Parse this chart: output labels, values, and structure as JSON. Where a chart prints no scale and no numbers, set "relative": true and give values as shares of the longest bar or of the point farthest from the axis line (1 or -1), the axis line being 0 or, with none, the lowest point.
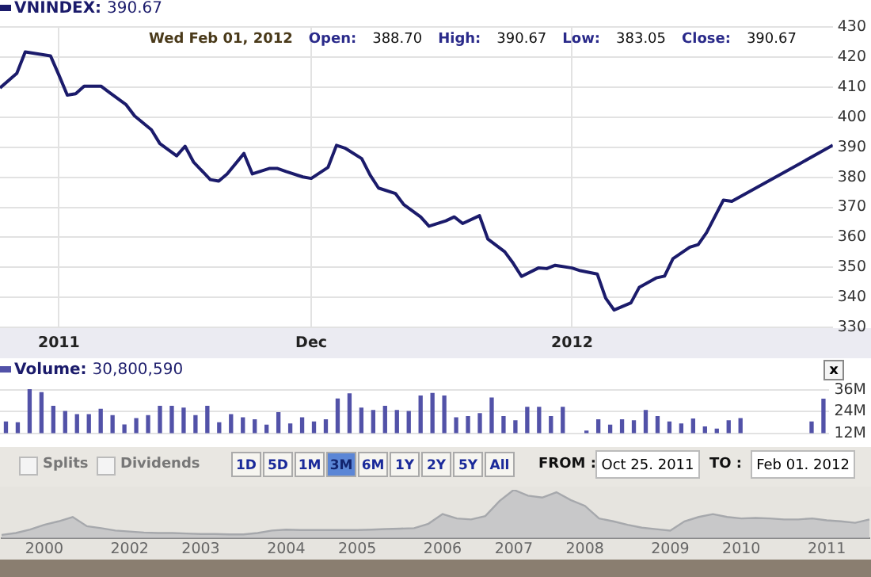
{
  "chart_data": [
    {
      "type": "line",
      "title": "VNINDEX: 390.67",
      "annotations": [
        "Wed Feb 01, 2012",
        "Open:",
        "388.70",
        "High:",
        "390.67",
        "Low:",
        "383.05",
        "Close:",
        "390.67"
      ],
      "x": [
        "2011-10-25",
        "2011-10-27",
        "2011-10-28",
        "2011-10-31",
        "2011-11-01",
        "2011-11-02",
        "2011-11-03",
        "2011-11-04",
        "2011-11-06",
        "2011-11-07",
        "2011-11-09",
        "2011-11-10",
        "2011-11-12",
        "2011-11-13",
        "2011-11-15",
        "2011-11-16",
        "2011-11-17",
        "2011-11-19",
        "2011-11-20",
        "2011-11-21",
        "2011-11-23",
        "2011-11-24",
        "2011-11-26",
        "2011-11-27",
        "2011-11-28",
        "2011-11-30",
        "2011-12-01",
        "2011-12-03",
        "2011-12-04",
        "2011-12-05",
        "2011-12-07",
        "2011-12-08",
        "2011-12-09",
        "2011-12-11",
        "2011-12-12",
        "2011-12-14",
        "2011-12-15",
        "2011-12-17",
        "2011-12-18",
        "2011-12-19",
        "2011-12-21",
        "2011-12-22",
        "2011-12-24",
        "2011-12-25",
        "2011-12-26",
        "2011-12-28",
        "2011-12-29",
        "2011-12-30",
        "2012-01-01",
        "2012-01-02",
        "2012-01-04",
        "2012-01-05",
        "2012-01-06",
        "2012-01-08",
        "2012-01-09",
        "2012-01-11",
        "2012-01-12",
        "2012-01-13",
        "2012-01-15",
        "2012-01-16",
        "2012-01-17",
        "2012-01-19",
        "2012-01-20",
        "2012-01-28",
        "2012-02-01"
      ],
      "series": [
        {
          "color": "#1b1b6b",
          "values": [
            409.7,
            414.6,
            421.7,
            420.4,
            414,
            407.3,
            407.8,
            410.3,
            410.3,
            408.2,
            404.1,
            400.4,
            395.8,
            391.2,
            387.1,
            390.3,
            385.1,
            379.2,
            378.7,
            381.1,
            387.9,
            381.1,
            382.9,
            382.9,
            381.9,
            380.1,
            379.6,
            383.3,
            390.6,
            389.7,
            386.2,
            380.7,
            376.4,
            374.6,
            370.9,
            366.8,
            363.7,
            365.5,
            366.8,
            364.6,
            367.2,
            359.4,
            355.2,
            351.4,
            347,
            349.8,
            349.6,
            350.7,
            349.8,
            348.9,
            347.8,
            339.8,
            335.8,
            338.2,
            343.4,
            346.5,
            347.1,
            352.9,
            356.7,
            357.6,
            361.6,
            372.4,
            372,
            384.4,
            390.67
          ]
        }
      ],
      "xlim": [
        "2011-10-25",
        "2012-02-01"
      ],
      "xticks": [
        {
          "value": "2011-11-01",
          "label": "2011"
        },
        {
          "value": "2011-12-01",
          "label": "Dec"
        },
        {
          "value": "2012-01-01",
          "label": "2012"
        }
      ],
      "ylim": [
        330,
        430
      ],
      "yticks": [
        330,
        340,
        350,
        360,
        370,
        380,
        390,
        400,
        410,
        420,
        430
      ],
      "grid": true
    },
    {
      "type": "bar",
      "title": "Volume: 30,800,590",
      "annotations": [
        "x"
      ],
      "categories": [
        null,
        null,
        null,
        null,
        null,
        null,
        null,
        null,
        null,
        null,
        null,
        null,
        null,
        null,
        null,
        null,
        null,
        null,
        null,
        null,
        null,
        null,
        null,
        null,
        null,
        null,
        null,
        null,
        null,
        null,
        null,
        null,
        null,
        null,
        null,
        null,
        null,
        null,
        null,
        null,
        null,
        null,
        null,
        null,
        null,
        null,
        null,
        null,
        null,
        null,
        null,
        null,
        null,
        null,
        null,
        null,
        null,
        null,
        null,
        null,
        null,
        null,
        null,
        null,
        null,
        null,
        null,
        null,
        null,
        null
      ],
      "series": [
        {
          "color": "#5252a8",
          "values": [
            18.2,
            17.8,
            36,
            34.4,
            26.8,
            24,
            22.2,
            22.2,
            25.2,
            21.7,
            16.6,
            20.1,
            21.7,
            26.8,
            26.8,
            25.8,
            21.7,
            26.8,
            17.8,
            22.2,
            20.5,
            19.4,
            16.4,
            23.3,
            17.1,
            20.5,
            18.2,
            19.4,
            30.9,
            33.7,
            25.8,
            24.5,
            26.8,
            24.5,
            24,
            32.5,
            33.9,
            32.5,
            20.5,
            21.2,
            22.8,
            31.4,
            21.2,
            18.9,
            26.3,
            26.3,
            21.2,
            26.3,
            null,
            13.2,
            19.4,
            16.4,
            19.4,
            18.9,
            24.5,
            21.2,
            18.2,
            17.1,
            19.8,
            15.5,
            14.3,
            18.9,
            20.1,
            null,
            null,
            null,
            null,
            null,
            18.2,
            30.8
          ]
        }
      ],
      "ylim": [
        12,
        37
      ],
      "yticks": [
        {
          "value": 12,
          "label": "12M"
        },
        {
          "value": 24,
          "label": "24M"
        },
        {
          "value": 36,
          "label": "36M"
        }
      ],
      "grid": "y",
      "tick_labels": "y"
    },
    {
      "type": "other",
      "annotations": [
        "Splits",
        "Dividends",
        "1D",
        "5D",
        "1M",
        "3M",
        "6M",
        "1Y",
        "2Y",
        "5Y",
        "All",
        "FROM :",
        "Oct 25. 2011",
        "TO :",
        "Feb 01. 2012"
      ]
    },
    {
      "type": "area",
      "relative": true,
      "tick_labels": "x",
      "categories": [
        null,
        null,
        null,
        "2000",
        null,
        null,
        null,
        null,
        null,
        "2002",
        null,
        null,
        null,
        null,
        "2003",
        null,
        null,
        null,
        null,
        null,
        "2004",
        null,
        null,
        null,
        null,
        "2005",
        null,
        null,
        null,
        null,
        null,
        "2006",
        null,
        null,
        null,
        null,
        "2007",
        null,
        null,
        null,
        null,
        "2008",
        null,
        null,
        null,
        null,
        null,
        "2009",
        null,
        null,
        null,
        null,
        "2010",
        null,
        null,
        null,
        null,
        null,
        "2011",
        null,
        null,
        null
      ],
      "series": [
        {
          "color": "#b8babe",
          "values": [
            0.07,
            0.11,
            0.18,
            0.28,
            0.35,
            0.44,
            0.25,
            0.21,
            0.16,
            0.14,
            0.12,
            0.11,
            0.11,
            0.1,
            0.09,
            0.09,
            0.08,
            0.08,
            0.11,
            0.16,
            0.18,
            0.17,
            0.17,
            0.17,
            0.17,
            0.17,
            0.18,
            0.19,
            0.2,
            0.21,
            0.3,
            0.5,
            0.41,
            0.39,
            0.46,
            0.77,
            1,
            0.88,
            0.84,
            0.95,
            0.79,
            0.67,
            0.41,
            0.35,
            0.28,
            0.22,
            0.19,
            0.16,
            0.35,
            0.44,
            0.5,
            0.44,
            0.41,
            0.42,
            0.41,
            0.39,
            0.39,
            0.41,
            0.37,
            0.35,
            0.32,
            0.39
          ]
        }
      ]
    }
  ]
}
